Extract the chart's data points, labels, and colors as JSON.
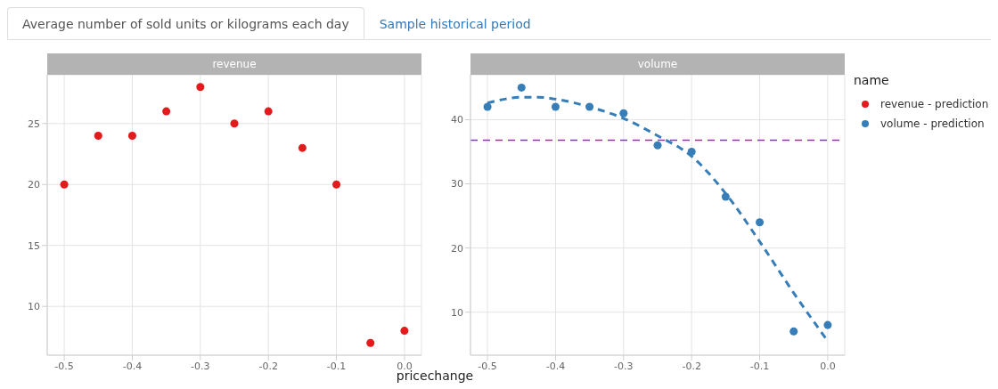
{
  "chart_data": [
    {
      "type": "scatter",
      "title": "revenue",
      "xlabel": "pricechange",
      "annotations": [
        "Average number of sold units or kilograms each day",
        "Sample historical period"
      ],
      "x": [
        -0.5,
        -0.45,
        -0.4,
        -0.35,
        -0.3,
        -0.25,
        -0.2,
        -0.15,
        -0.1,
        -0.05,
        0
      ],
      "xlim": [
        -0.525,
        0.025
      ],
      "xticks": [
        {
          "value": -0.5,
          "label": "-0.5"
        },
        {
          "value": -0.4,
          "label": "-0.4"
        },
        {
          "value": -0.3,
          "label": "-0.3"
        },
        {
          "value": -0.2,
          "label": "-0.2"
        },
        {
          "value": -0.1,
          "label": "-0.1"
        },
        {
          "value": 0,
          "label": "0.0"
        }
      ],
      "ylim": [
        6,
        29
      ],
      "yticks": [
        10,
        15,
        20,
        25
      ],
      "grid": true,
      "legend": "right",
      "marker": "circle",
      "series": [
        {
          "name": "revenue - prediction",
          "color": "#e41a1c",
          "values": [
            20,
            24,
            24,
            26,
            28,
            25,
            26,
            23,
            20,
            7,
            8
          ]
        }
      ]
    },
    {
      "type": "scatter",
      "title": "volume",
      "legend_title": "name",
      "x": [
        -0.5,
        -0.45,
        -0.4,
        -0.35,
        -0.3,
        -0.25,
        -0.2,
        -0.15,
        -0.1,
        -0.05,
        0
      ],
      "xlim": [
        -0.525,
        0.025
      ],
      "xticks": [
        {
          "value": -0.5,
          "label": "-0.5"
        },
        {
          "value": -0.4,
          "label": "-0.4"
        },
        {
          "value": -0.3,
          "label": "-0.3"
        },
        {
          "value": -0.2,
          "label": "-0.2"
        },
        {
          "value": -0.1,
          "label": "-0.1"
        },
        {
          "value": 0,
          "label": "0.0"
        }
      ],
      "ylim": [
        3.3,
        47
      ],
      "yticks": [
        10,
        20,
        30,
        40
      ],
      "grid": true,
      "legend": "right",
      "marker": "circle",
      "ref_lines": [
        {
          "axis": "y",
          "value": 36.8,
          "color": "#a020f0",
          "line_style": "dashed"
        }
      ],
      "series": [
        {
          "name": "volume - prediction",
          "color": "#377eb8",
          "values": [
            42,
            45,
            42,
            42,
            41,
            36,
            35,
            28,
            24,
            7,
            8
          ]
        },
        {
          "type": "line",
          "color": "#377eb8",
          "line_style": "dashed",
          "marker": "none",
          "x": [
            -0.5,
            -0.475,
            -0.45,
            -0.425,
            -0.4,
            -0.35,
            -0.3,
            -0.25,
            -0.2,
            -0.15,
            -0.1,
            -0.05,
            0
          ],
          "values": [
            42.6,
            43.2,
            43.5,
            43.5,
            43.2,
            42,
            40.2,
            37.5,
            34.3,
            28.5,
            21,
            13,
            5.5
          ]
        }
      ]
    }
  ]
}
